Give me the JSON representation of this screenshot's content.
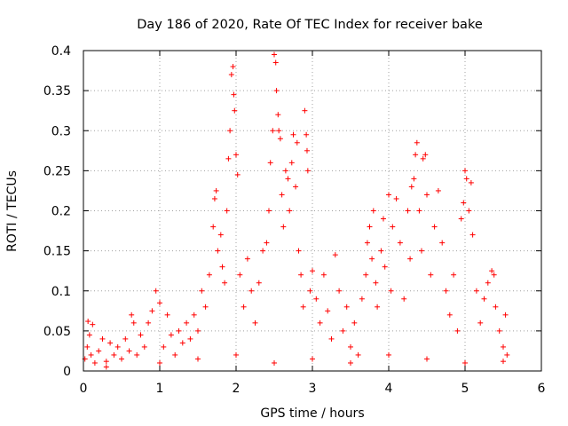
{
  "chart_data": {
    "type": "scatter",
    "title": "Day 186 of 2020, Rate Of TEC Index for receiver bake",
    "xlabel": "GPS time / hours",
    "ylabel": "ROTI / TECUs",
    "xlim": [
      0,
      6
    ],
    "ylim": [
      0,
      0.4
    ],
    "x_ticks": [
      "0",
      "1",
      "2",
      "3",
      "4",
      "5",
      "6"
    ],
    "y_ticks": [
      "0",
      "0.05",
      "0.1",
      "0.15",
      "0.2",
      "0.25",
      "0.3",
      "0.35",
      "0.4"
    ],
    "grid": true,
    "marker": "plus",
    "color": "#ff0000",
    "series": [
      {
        "name": "ROTI",
        "points": [
          [
            0.02,
            0.015
          ],
          [
            0.05,
            0.03
          ],
          [
            0.06,
            0.062
          ],
          [
            0.08,
            0.045
          ],
          [
            0.1,
            0.02
          ],
          [
            0.12,
            0.058
          ],
          [
            0.15,
            0.01
          ],
          [
            0.2,
            0.025
          ],
          [
            0.25,
            0.04
          ],
          [
            0.3,
            0.012
          ],
          [
            0.35,
            0.035
          ],
          [
            0.4,
            0.02
          ],
          [
            0.45,
            0.03
          ],
          [
            0.5,
            0.015
          ],
          [
            0.55,
            0.04
          ],
          [
            0.6,
            0.025
          ],
          [
            0.63,
            0.07
          ],
          [
            0.66,
            0.06
          ],
          [
            0.7,
            0.02
          ],
          [
            0.75,
            0.045
          ],
          [
            0.8,
            0.03
          ],
          [
            0.85,
            0.06
          ],
          [
            0.9,
            0.075
          ],
          [
            0.95,
            0.1
          ],
          [
            1.0,
            0.085
          ],
          [
            1.05,
            0.03
          ],
          [
            1.1,
            0.07
          ],
          [
            1.15,
            0.045
          ],
          [
            1.2,
            0.02
          ],
          [
            1.25,
            0.05
          ],
          [
            1.3,
            0.035
          ],
          [
            1.35,
            0.06
          ],
          [
            1.4,
            0.04
          ],
          [
            1.45,
            0.07
          ],
          [
            1.5,
            0.05
          ],
          [
            1.55,
            0.1
          ],
          [
            1.6,
            0.08
          ],
          [
            1.65,
            0.12
          ],
          [
            1.7,
            0.18
          ],
          [
            1.72,
            0.215
          ],
          [
            1.74,
            0.225
          ],
          [
            1.76,
            0.15
          ],
          [
            1.8,
            0.17
          ],
          [
            1.82,
            0.13
          ],
          [
            1.85,
            0.11
          ],
          [
            1.88,
            0.2
          ],
          [
            1.9,
            0.265
          ],
          [
            1.92,
            0.3
          ],
          [
            1.94,
            0.37
          ],
          [
            1.96,
            0.38
          ],
          [
            1.97,
            0.345
          ],
          [
            1.98,
            0.325
          ],
          [
            2.0,
            0.27
          ],
          [
            2.02,
            0.245
          ],
          [
            2.05,
            0.12
          ],
          [
            2.1,
            0.08
          ],
          [
            2.15,
            0.14
          ],
          [
            2.2,
            0.1
          ],
          [
            2.25,
            0.06
          ],
          [
            2.3,
            0.11
          ],
          [
            2.35,
            0.15
          ],
          [
            2.4,
            0.16
          ],
          [
            2.43,
            0.2
          ],
          [
            2.45,
            0.26
          ],
          [
            2.48,
            0.3
          ],
          [
            2.5,
            0.395
          ],
          [
            2.52,
            0.385
          ],
          [
            2.53,
            0.35
          ],
          [
            2.55,
            0.32
          ],
          [
            2.56,
            0.3
          ],
          [
            2.58,
            0.29
          ],
          [
            2.6,
            0.22
          ],
          [
            2.62,
            0.18
          ],
          [
            2.65,
            0.25
          ],
          [
            2.68,
            0.24
          ],
          [
            2.7,
            0.2
          ],
          [
            2.73,
            0.26
          ],
          [
            2.75,
            0.295
          ],
          [
            2.78,
            0.23
          ],
          [
            2.8,
            0.285
          ],
          [
            2.82,
            0.15
          ],
          [
            2.85,
            0.12
          ],
          [
            2.88,
            0.08
          ],
          [
            2.9,
            0.325
          ],
          [
            2.92,
            0.295
          ],
          [
            2.93,
            0.275
          ],
          [
            2.94,
            0.25
          ],
          [
            2.97,
            0.1
          ],
          [
            3.0,
            0.125
          ],
          [
            3.05,
            0.09
          ],
          [
            3.1,
            0.06
          ],
          [
            3.15,
            0.12
          ],
          [
            3.2,
            0.075
          ],
          [
            3.25,
            0.04
          ],
          [
            3.3,
            0.145
          ],
          [
            3.35,
            0.1
          ],
          [
            3.4,
            0.05
          ],
          [
            3.45,
            0.08
          ],
          [
            3.5,
            0.03
          ],
          [
            3.55,
            0.06
          ],
          [
            3.6,
            0.02
          ],
          [
            3.65,
            0.09
          ],
          [
            3.7,
            0.12
          ],
          [
            3.72,
            0.16
          ],
          [
            3.75,
            0.18
          ],
          [
            3.78,
            0.14
          ],
          [
            3.8,
            0.2
          ],
          [
            3.83,
            0.11
          ],
          [
            3.85,
            0.08
          ],
          [
            3.9,
            0.15
          ],
          [
            3.93,
            0.19
          ],
          [
            3.95,
            0.13
          ],
          [
            4.0,
            0.22
          ],
          [
            4.03,
            0.1
          ],
          [
            4.05,
            0.18
          ],
          [
            4.1,
            0.215
          ],
          [
            4.15,
            0.16
          ],
          [
            4.2,
            0.09
          ],
          [
            4.25,
            0.2
          ],
          [
            4.28,
            0.14
          ],
          [
            4.3,
            0.23
          ],
          [
            4.33,
            0.24
          ],
          [
            4.35,
            0.27
          ],
          [
            4.37,
            0.285
          ],
          [
            4.4,
            0.2
          ],
          [
            4.43,
            0.15
          ],
          [
            4.45,
            0.265
          ],
          [
            4.48,
            0.27
          ],
          [
            4.5,
            0.22
          ],
          [
            4.55,
            0.12
          ],
          [
            4.6,
            0.18
          ],
          [
            4.65,
            0.225
          ],
          [
            4.7,
            0.16
          ],
          [
            4.75,
            0.1
          ],
          [
            4.8,
            0.07
          ],
          [
            4.85,
            0.12
          ],
          [
            4.9,
            0.05
          ],
          [
            4.95,
            0.19
          ],
          [
            4.98,
            0.21
          ],
          [
            5.0,
            0.25
          ],
          [
            5.02,
            0.24
          ],
          [
            5.05,
            0.2
          ],
          [
            5.08,
            0.235
          ],
          [
            5.1,
            0.17
          ],
          [
            5.15,
            0.1
          ],
          [
            5.2,
            0.06
          ],
          [
            5.25,
            0.09
          ],
          [
            5.3,
            0.11
          ],
          [
            5.35,
            0.125
          ],
          [
            5.38,
            0.12
          ],
          [
            5.4,
            0.08
          ],
          [
            5.45,
            0.05
          ],
          [
            5.5,
            0.03
          ],
          [
            5.53,
            0.07
          ],
          [
            5.55,
            0.02
          ],
          [
            0.3,
            0.005
          ],
          [
            1.0,
            0.01
          ],
          [
            1.5,
            0.015
          ],
          [
            2.0,
            0.02
          ],
          [
            2.5,
            0.01
          ],
          [
            3.0,
            0.015
          ],
          [
            3.5,
            0.01
          ],
          [
            4.0,
            0.02
          ],
          [
            4.5,
            0.015
          ],
          [
            5.0,
            0.01
          ],
          [
            5.5,
            0.012
          ]
        ]
      }
    ]
  }
}
